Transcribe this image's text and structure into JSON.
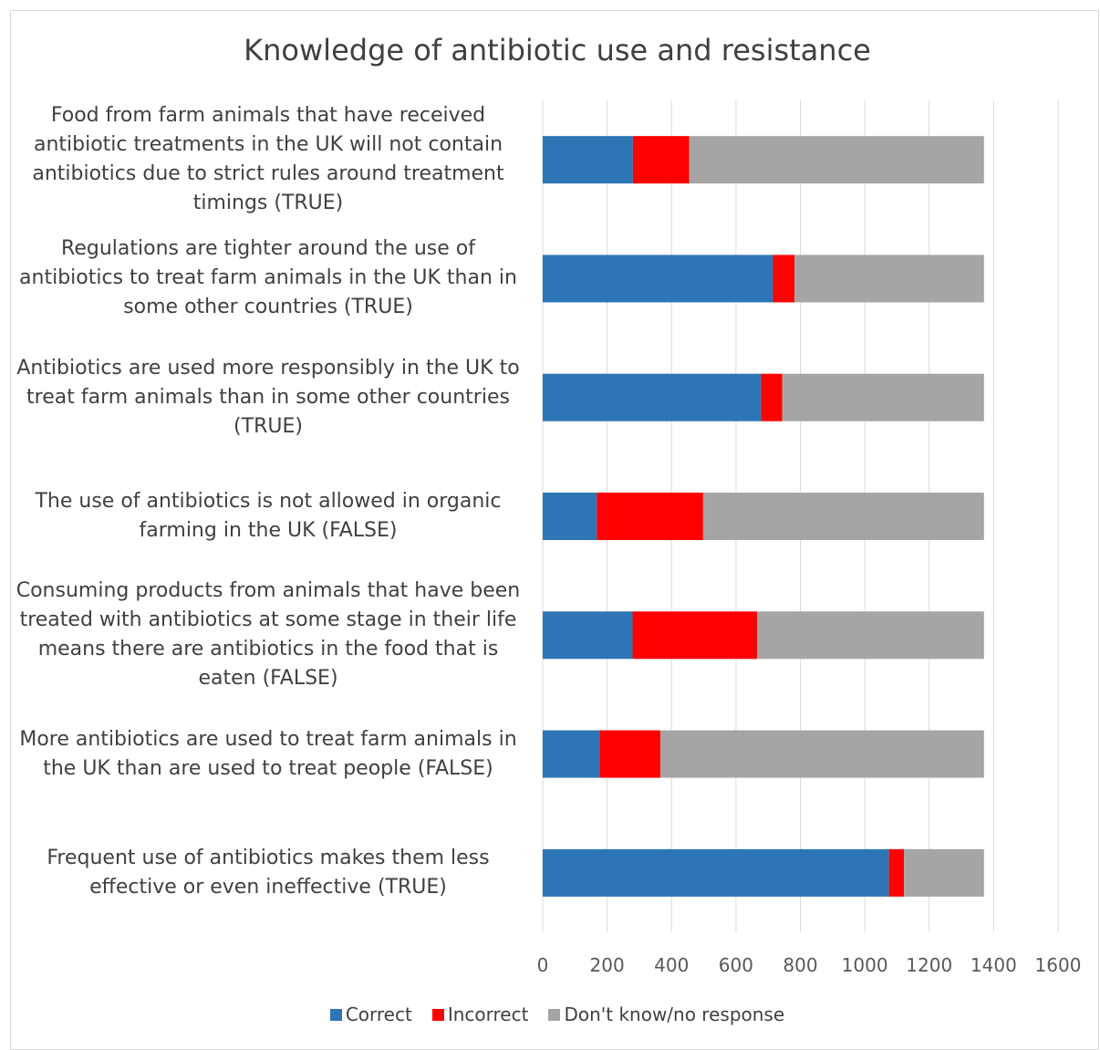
{
  "chart_data": {
    "type": "bar",
    "orientation": "horizontal",
    "stacked": true,
    "title": "Knowledge of antibiotic use and resistance",
    "categories": [
      "Food from farm animals that have received antibiotic treatments in the UK will not contain antibiotics due to strict rules around treatment timings (TRUE)",
      "Regulations are tighter around the use of antibiotics to treat farm animals in the UK than in some other countries (TRUE)",
      "Antibiotics are used more responsibly in the UK to treat farm animals than in some other countries (TRUE)",
      "The use of antibiotics is not allowed in organic farming in the UK (FALSE)",
      "Consuming products from animals that have been treated with antibiotics at some stage in their life means there are antibiotics in the food that is eaten (FALSE)",
      "More antibiotics are used to treat farm animals in the UK than are used to treat people (FALSE)",
      "Frequent use of antibiotics makes them less effective or even ineffective (TRUE)"
    ],
    "category_lines": [
      [
        "Food from farm animals that have received",
        "antibiotic treatments in the UK will not contain",
        "antibiotics due to strict rules around treatment",
        "timings (TRUE)"
      ],
      [
        "Regulations are tighter around the use of",
        "antibiotics to treat farm animals in the UK than in",
        "some other countries (TRUE)"
      ],
      [
        "Antibiotics are used more responsibly in the UK to",
        "treat farm animals than in some other countries",
        "(TRUE)"
      ],
      [
        "The use of antibiotics is not allowed in organic",
        "farming in the UK (FALSE)"
      ],
      [
        "Consuming products from animals that have been",
        "treated with antibiotics at some stage in their life",
        "means there are antibiotics in the food that is",
        "eaten (FALSE)"
      ],
      [
        "More antibiotics are used to treat farm animals in",
        "the UK than are used to treat people (FALSE)"
      ],
      [
        "Frequent use of antibiotics makes them less",
        "effective or even ineffective (TRUE)"
      ]
    ],
    "series": [
      {
        "name": "Correct",
        "color": "#2e75b6",
        "values": [
          280,
          715,
          678,
          168,
          279,
          176,
          1075
        ]
      },
      {
        "name": "Incorrect",
        "color": "#ff0000",
        "values": [
          175,
          67,
          66,
          330,
          387,
          190,
          47
        ]
      },
      {
        "name": "Don't know/no response",
        "color": "#a5a5a5",
        "values": [
          915,
          588,
          626,
          872,
          704,
          1004,
          248
        ]
      }
    ],
    "xlim": [
      0,
      1600
    ],
    "xticks": [
      "0",
      "200",
      "400",
      "600",
      "800",
      "1000",
      "1200",
      "1400",
      "1600"
    ],
    "grid": true,
    "legend_position": "bottom"
  }
}
